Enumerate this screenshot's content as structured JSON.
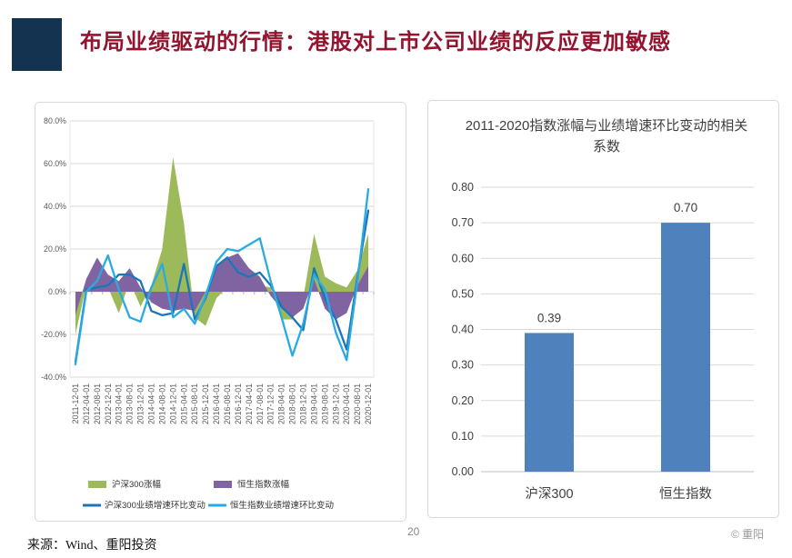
{
  "header": {
    "title": "布局业绩驱动的行情：港股对上市公司业绩的反应更加敏感"
  },
  "footer": {
    "source": "来源：Wind、重阳投资",
    "page_number": "20",
    "copyright": "© 重阳"
  },
  "chart_data": [
    {
      "type": "area+line",
      "categories": [
        "2011-12-01",
        "2012-04-01",
        "2012-08-01",
        "2012-12-01",
        "2013-04-01",
        "2013-08-01",
        "2013-12-01",
        "2014-04-01",
        "2014-08-01",
        "2014-12-01",
        "2015-04-01",
        "2015-08-01",
        "2015-12-01",
        "2016-04-01",
        "2016-08-01",
        "2016-12-01",
        "2017-04-01",
        "2017-08-01",
        "2017-12-01",
        "2018-04-01",
        "2018-08-01",
        "2018-12-01",
        "2019-04-01",
        "2019-08-01",
        "2019-12-01",
        "2020-04-01",
        "2020-08-01",
        "2020-12-01"
      ],
      "series": [
        {
          "name": "沪深300涨幅",
          "type": "area",
          "color": "#9cba59",
          "values": [
            -20,
            3,
            4,
            2,
            -10,
            5,
            -7,
            3,
            20,
            63,
            32,
            -12,
            -16,
            -3,
            2,
            4,
            4,
            3,
            2,
            -13,
            -13,
            -3,
            27,
            7,
            4,
            2,
            10,
            27
          ]
        },
        {
          "name": "恒生指数涨幅",
          "type": "area",
          "color": "#8064a2",
          "values": [
            -11,
            6,
            16,
            8,
            5,
            11,
            2,
            -5,
            -8,
            -9,
            -8,
            -9,
            0,
            12,
            16,
            18,
            11,
            7,
            -2,
            -8,
            -12,
            -8,
            6,
            -8,
            -13,
            -10,
            3,
            12
          ]
        },
        {
          "name": "沪深300业绩增速环比变动",
          "type": "line",
          "color": "#1b75bc",
          "values": [
            -33,
            1,
            2,
            3,
            8,
            8,
            5,
            -9,
            -11,
            -10,
            13,
            -13,
            -3,
            12,
            16,
            9,
            7,
            9,
            3,
            -7,
            -12,
            -18,
            11,
            -3,
            -13,
            -27,
            7,
            38
          ]
        },
        {
          "name": "恒生指数业绩增速环比变动",
          "type": "line",
          "color": "#29abe2",
          "values": [
            -34,
            0,
            5,
            17,
            1,
            -12,
            -14,
            2,
            13,
            -12,
            -8,
            -15,
            -2,
            14,
            20,
            19,
            22,
            25,
            5,
            -12,
            -30,
            -15,
            8,
            1,
            -19,
            -32,
            5,
            48
          ]
        }
      ],
      "unit": "%",
      "ylim": [
        -40,
        80
      ],
      "ytick_step": 20,
      "grid": true,
      "legend_position": "bottom"
    },
    {
      "type": "bar",
      "title_lines": [
        "2011-2020指数涨幅与业绩增速环比变动的相关",
        "系数"
      ],
      "categories": [
        "沪深300",
        "恒生指数"
      ],
      "values": [
        0.39,
        0.7
      ],
      "data_labels": [
        "0.39",
        "0.70"
      ],
      "bar_color": "#4f81bd",
      "ylim": [
        0,
        0.8
      ],
      "ytick_step": 0.1,
      "grid": true,
      "legend_position": "none"
    }
  ],
  "colors": {
    "title_red": "#93142e",
    "accent_navy": "#143350",
    "gridline": "#d9d9d9",
    "axis_text": "#595959",
    "chart_text": "#404040"
  }
}
